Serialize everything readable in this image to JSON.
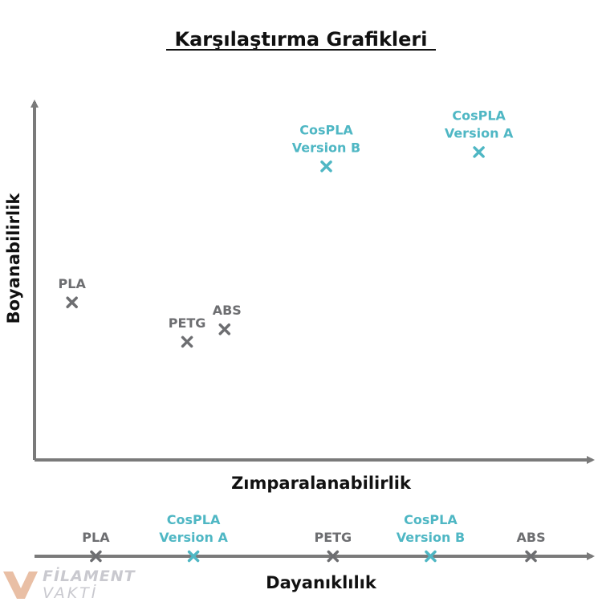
{
  "chart_data": [
    {
      "type": "scatter",
      "title": "Karşılaştırma Grafikleri",
      "xlabel": "Zımparalanabilirlik",
      "ylabel": "Boyanabilirlik",
      "xlim": [
        0,
        100
      ],
      "ylim": [
        0,
        100
      ],
      "grid": false,
      "points": [
        {
          "label": [
            "PLA"
          ],
          "x": 7,
          "y": 44,
          "color": "#6d6e71"
        },
        {
          "label": [
            "PETG"
          ],
          "x": 28.5,
          "y": 33,
          "color": "#6d6e71"
        },
        {
          "label": [
            "ABS"
          ],
          "x": 35.5,
          "y": 36.5,
          "color": "#6d6e71"
        },
        {
          "label": [
            "CosPLA",
            "Version B"
          ],
          "x": 54.5,
          "y": 82,
          "color": "#4fb7c4"
        },
        {
          "label": [
            "CosPLA",
            "Version A"
          ],
          "x": 83,
          "y": 86,
          "color": "#4fb7c4"
        }
      ]
    },
    {
      "type": "scatter",
      "xlabel": "Dayanıklılık",
      "xlim": [
        0,
        100
      ],
      "points": [
        {
          "label": [
            "PLA"
          ],
          "x": 11,
          "color": "#6d6e71"
        },
        {
          "label": [
            "CosPLA",
            "Version A"
          ],
          "x": 28.5,
          "color": "#4fb7c4"
        },
        {
          "label": [
            "PETG"
          ],
          "x": 53.5,
          "color": "#6d6e71"
        },
        {
          "label": [
            "CosPLA",
            "Version B"
          ],
          "x": 71,
          "color": "#4fb7c4"
        },
        {
          "label": [
            "ABS"
          ],
          "x": 89,
          "color": "#6d6e71"
        }
      ]
    }
  ],
  "logo": {
    "main": "FİLAMENT",
    "sub": "VAKTİ"
  },
  "colors": {
    "axis": "#7a7a7a",
    "dark": "#6d6e71",
    "accent": "#4fb7c4"
  }
}
